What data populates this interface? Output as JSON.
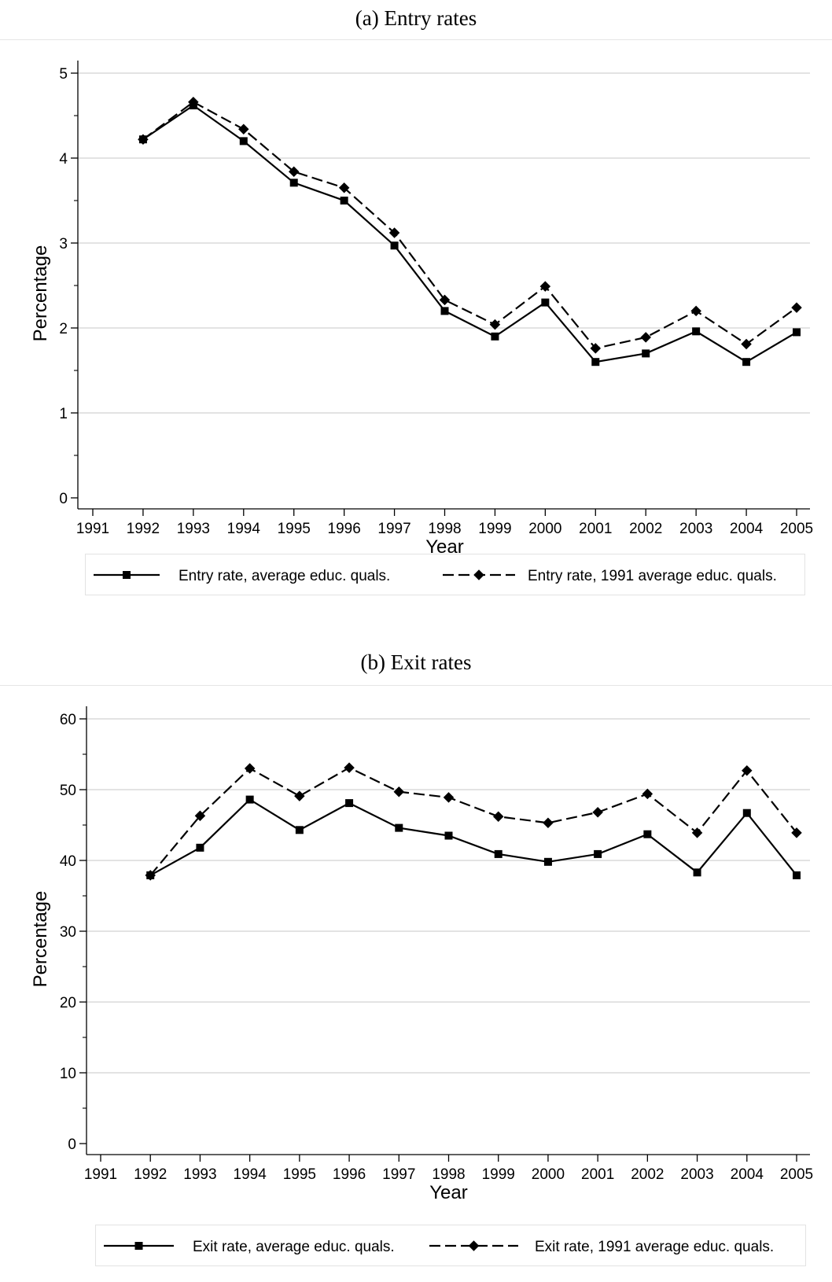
{
  "chart_data": [
    {
      "type": "line",
      "title": "(a) Entry rates",
      "xlabel": "Year",
      "ylabel": "Percentage",
      "x": [
        1991,
        1992,
        1993,
        1994,
        1995,
        1996,
        1997,
        1998,
        1999,
        2000,
        2001,
        2002,
        2003,
        2004,
        2005
      ],
      "x_ticks": [
        "1991",
        "1992",
        "1993",
        "1994",
        "1995",
        "1996",
        "1997",
        "1998",
        "1999",
        "2000",
        "2001",
        "2002",
        "2003",
        "2004",
        "2005"
      ],
      "ylim": [
        0,
        5
      ],
      "y_ticks": [
        0,
        1,
        2,
        3,
        4,
        5
      ],
      "y_tick_labels": [
        "0",
        "1",
        "2",
        "3",
        "4",
        "5"
      ],
      "y_minor_ticks": [
        0.5,
        1.5,
        2.5,
        3.5,
        4.5
      ],
      "grid": true,
      "legend_position": "bottom",
      "series": [
        {
          "name": "Entry rate, average educ. quals.",
          "style": "solid",
          "marker": "square",
          "color": "#000000",
          "x": [
            1992,
            1993,
            1994,
            1995,
            1996,
            1997,
            1998,
            1999,
            2000,
            2001,
            2002,
            2003,
            2004,
            2005
          ],
          "values": [
            4.22,
            4.62,
            4.2,
            3.71,
            3.5,
            2.97,
            2.2,
            1.9,
            2.3,
            1.6,
            1.7,
            1.96,
            1.6,
            1.95
          ]
        },
        {
          "name": "Entry rate, 1991 average educ. quals.",
          "style": "dashed",
          "marker": "diamond",
          "color": "#000000",
          "x": [
            1992,
            1993,
            1994,
            1995,
            1996,
            1997,
            1998,
            1999,
            2000,
            2001,
            2002,
            2003,
            2004,
            2005
          ],
          "values": [
            4.22,
            4.66,
            4.34,
            3.84,
            3.65,
            3.12,
            2.33,
            2.04,
            2.49,
            1.76,
            1.89,
            2.2,
            1.81,
            2.24
          ]
        }
      ]
    },
    {
      "type": "line",
      "title": "(b) Exit rates",
      "xlabel": "Year",
      "ylabel": "Percentage",
      "x": [
        1991,
        1992,
        1993,
        1994,
        1995,
        1996,
        1997,
        1998,
        1999,
        2000,
        2001,
        2002,
        2003,
        2004,
        2005
      ],
      "x_ticks": [
        "1991",
        "1992",
        "1993",
        "1994",
        "1995",
        "1996",
        "1997",
        "1998",
        "1999",
        "2000",
        "2001",
        "2002",
        "2003",
        "2004",
        "2005"
      ],
      "ylim": [
        0,
        60
      ],
      "y_ticks": [
        0,
        10,
        20,
        30,
        40,
        50,
        60
      ],
      "y_tick_labels": [
        "0",
        "10",
        "20",
        "30",
        "40",
        "50",
        "60"
      ],
      "y_minor_ticks": [
        5,
        15,
        25,
        35,
        45,
        55
      ],
      "grid": true,
      "legend_position": "bottom",
      "series": [
        {
          "name": "Exit rate, average educ. quals.",
          "style": "solid",
          "marker": "square",
          "color": "#000000",
          "x": [
            1992,
            1993,
            1994,
            1995,
            1996,
            1997,
            1998,
            1999,
            2000,
            2001,
            2002,
            2003,
            2004,
            2005
          ],
          "values": [
            37.9,
            41.8,
            48.6,
            44.3,
            48.1,
            44.6,
            43.5,
            40.9,
            39.8,
            40.9,
            43.7,
            38.3,
            46.7,
            37.9
          ]
        },
        {
          "name": "Exit rate, 1991 average educ. quals.",
          "style": "dashed",
          "marker": "diamond",
          "color": "#000000",
          "x": [
            1992,
            1993,
            1994,
            1995,
            1996,
            1997,
            1998,
            1999,
            2000,
            2001,
            2002,
            2003,
            2004,
            2005
          ],
          "values": [
            37.9,
            46.3,
            53.0,
            49.1,
            53.1,
            49.7,
            48.9,
            46.2,
            45.3,
            46.8,
            49.4,
            43.9,
            52.7,
            43.9
          ]
        }
      ]
    }
  ]
}
